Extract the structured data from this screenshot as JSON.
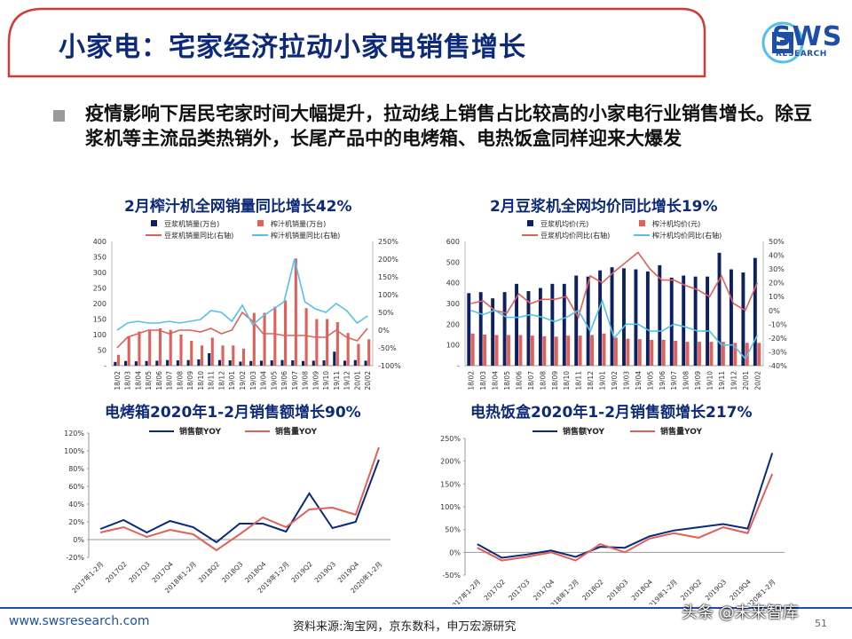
{
  "header": {
    "title": "小家电：宅家经济拉动小家电销售增长",
    "logo_text": "SWS",
    "logo_sub": "RESEARCH"
  },
  "bullet": {
    "text": "疫情影响下居民宅家时间大幅提升，拉动线上销售占比较高的小家电行业销售增长。除豆浆机等主流品类热销外，长尾产品中的电烤箱、电热饭盒同样迎来大爆发"
  },
  "footer": {
    "url": "www.swsresearch.com",
    "source": "资料来源:淘宝网，京东数科，申万宏源研究",
    "page_number": "51",
    "watermark": "头条 @未来智库"
  },
  "colors": {
    "navy": "#0d2a7a",
    "red": "#e0605a",
    "light_blue": "#56c1e8",
    "dark_navy": "#0d2060"
  },
  "chart_data": [
    {
      "type": "bar",
      "title": "2月榨汁机全网销量同比增长42%",
      "categories": [
        "18/02",
        "18/03",
        "18/04",
        "18/05",
        "18/06",
        "18/07",
        "18/08",
        "18/09",
        "18/10",
        "18/11",
        "18/12",
        "19/01",
        "19/02",
        "19/03",
        "19/04",
        "19/05",
        "19/06",
        "19/07",
        "19/08",
        "19/09",
        "19/10",
        "19/11",
        "19/12",
        "20/01",
        "20/02"
      ],
      "series": [
        {
          "name": "豆浆机销量(万台)",
          "kind": "bar",
          "axis": "left",
          "values": [
            12,
            15,
            14,
            15,
            16,
            18,
            17,
            18,
            20,
            40,
            18,
            17,
            13,
            15,
            16,
            17,
            18,
            17,
            15,
            16,
            17,
            45,
            16,
            18,
            16
          ]
        },
        {
          "name": "榨汁机销量(万台)",
          "kind": "bar",
          "axis": "left",
          "values": [
            35,
            95,
            110,
            115,
            120,
            115,
            100,
            80,
            65,
            90,
            65,
            65,
            55,
            170,
            170,
            190,
            210,
            345,
            185,
            150,
            150,
            140,
            105,
            70,
            85
          ]
        },
        {
          "name": "豆浆机销量同比(右轴)",
          "kind": "line",
          "axis": "right",
          "values": [
            -50,
            -20,
            -10,
            0,
            0,
            -10,
            0,
            0,
            -5,
            5,
            -10,
            0,
            50,
            25,
            -10,
            -10,
            -15,
            -15,
            -15,
            -20,
            -20,
            0,
            -20,
            -30,
            5
          ]
        },
        {
          "name": "榨汁机销量同比(右轴)",
          "kind": "line",
          "axis": "right",
          "values": [
            0,
            20,
            25,
            20,
            20,
            25,
            20,
            25,
            30,
            55,
            50,
            25,
            70,
            15,
            40,
            60,
            80,
            200,
            80,
            60,
            50,
            75,
            55,
            20,
            40
          ]
        }
      ],
      "y_left": {
        "min": 0,
        "max": 400,
        "ticks": [
          "-",
          "50",
          "100",
          "150",
          "200",
          "250",
          "300",
          "350",
          "400"
        ]
      },
      "y_right": {
        "min": -100,
        "max": 250,
        "ticks": [
          "-100%",
          "-50%",
          "0%",
          "50%",
          "100%",
          "150%",
          "200%",
          "250%"
        ]
      }
    },
    {
      "type": "bar",
      "title": "2月豆浆机全网均价同比增长19%",
      "categories": [
        "18/02",
        "18/03",
        "18/04",
        "18/05",
        "18/06",
        "18/07",
        "18/08",
        "18/09",
        "18/10",
        "18/11",
        "18/12",
        "19/01",
        "19/02",
        "19/03",
        "19/04",
        "19/05",
        "19/06",
        "19/07",
        "19/08",
        "19/09",
        "19/10",
        "19/11",
        "19/12",
        "20/01",
        "20/02"
      ],
      "series": [
        {
          "name": "豆浆机均价(元)",
          "kind": "bar",
          "axis": "left",
          "values": [
            350,
            355,
            325,
            355,
            395,
            360,
            375,
            395,
            395,
            435,
            430,
            460,
            475,
            470,
            465,
            455,
            485,
            425,
            435,
            430,
            430,
            545,
            465,
            450,
            520
          ]
        },
        {
          "name": "榨汁机均价(元)",
          "kind": "bar",
          "axis": "left",
          "values": [
            155,
            150,
            148,
            148,
            148,
            145,
            142,
            140,
            145,
            145,
            148,
            155,
            135,
            130,
            128,
            125,
            125,
            120,
            115,
            115,
            115,
            115,
            110,
            110,
            110
          ]
        },
        {
          "name": "豆浆机均价同比(右轴)",
          "kind": "line",
          "axis": "right",
          "values": [
            5,
            7,
            0,
            -2,
            12,
            5,
            8,
            8,
            10,
            -5,
            25,
            20,
            28,
            35,
            42,
            30,
            22,
            22,
            18,
            15,
            10,
            25,
            5,
            0,
            20
          ]
        },
        {
          "name": "榨汁机均价同比(右轴)",
          "kind": "line",
          "axis": "right",
          "values": [
            0,
            -3,
            0,
            -5,
            -5,
            -3,
            -5,
            -8,
            -5,
            0,
            -15,
            7,
            -20,
            -10,
            -10,
            -15,
            -15,
            -10,
            -12,
            -15,
            -15,
            -25,
            -25,
            -35,
            -18
          ]
        }
      ],
      "y_left": {
        "min": 0,
        "max": 600,
        "ticks": [
          "-",
          "100",
          "200",
          "300",
          "400",
          "500",
          "600"
        ]
      },
      "y_right": {
        "min": -40,
        "max": 50,
        "ticks": [
          "-40%",
          "-30%",
          "-20%",
          "-10%",
          "0%",
          "10%",
          "20%",
          "30%",
          "40%",
          "50%"
        ]
      }
    },
    {
      "type": "line",
      "title": "电烤箱2020年1-2月销售额增长90%",
      "categories": [
        "2017年1-2月",
        "2017Q2",
        "2017Q3",
        "2017Q4",
        "2018年1-2月",
        "2018Q2",
        "2018Q3",
        "2018Q4",
        "2019年1-2月",
        "2019Q2",
        "2019Q3",
        "2019Q4",
        "2020年1-2月"
      ],
      "series": [
        {
          "name": "销售额YOY",
          "values": [
            12,
            22,
            8,
            21,
            14,
            -3,
            18,
            18,
            9,
            52,
            13,
            20,
            90
          ]
        },
        {
          "name": "销售量YOY",
          "values": [
            8,
            14,
            3,
            11,
            6,
            -12,
            6,
            25,
            14,
            34,
            36,
            28,
            104
          ]
        }
      ],
      "y": {
        "min": -20,
        "max": 120,
        "ticks": [
          "-20%",
          "0%",
          "20%",
          "40%",
          "60%",
          "80%",
          "100%",
          "120%"
        ]
      }
    },
    {
      "type": "line",
      "title": "电热饭盒2020年1-2月销售额增长217%",
      "categories": [
        "2017年1-2月",
        "2017Q2",
        "2017Q3",
        "2017Q4",
        "2018年1-2月",
        "2018Q2",
        "2018Q3",
        "2018Q4",
        "2019年1-2月",
        "2019Q2",
        "2019Q3",
        "2019Q4",
        "2020年1-2月"
      ],
      "series": [
        {
          "name": "销售额YOY",
          "values": [
            18,
            -12,
            -5,
            4,
            -10,
            12,
            10,
            35,
            48,
            55,
            62,
            52,
            218
          ]
        },
        {
          "name": "销售量YOY",
          "values": [
            10,
            -18,
            -10,
            0,
            -18,
            18,
            0,
            30,
            42,
            32,
            55,
            42,
            172
          ]
        }
      ],
      "y": {
        "min": -50,
        "max": 250,
        "ticks": [
          "-50%",
          "0%",
          "50%",
          "100%",
          "150%",
          "200%",
          "250%"
        ]
      }
    }
  ]
}
